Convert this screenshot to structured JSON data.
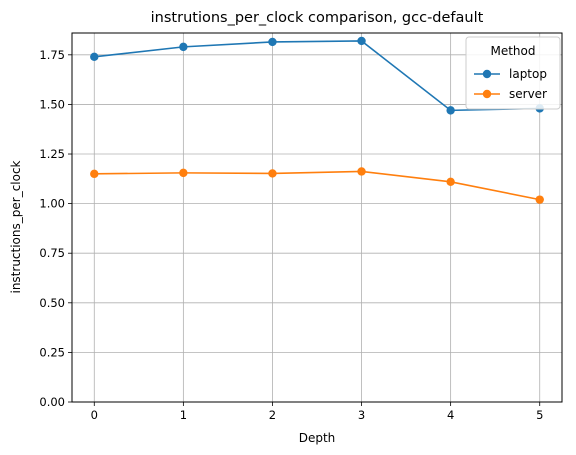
{
  "chart_data": {
    "type": "line",
    "title": "instrutions_per_clock comparison, gcc-default",
    "xlabel": "Depth",
    "ylabel": "instructions_per_clock",
    "x": [
      0,
      1,
      2,
      3,
      4,
      5
    ],
    "xlim": [
      -0.25,
      5.25
    ],
    "ylim": [
      0.0,
      1.86
    ],
    "xticks": [
      "0",
      "1",
      "2",
      "3",
      "4",
      "5"
    ],
    "yticks": [
      0.0,
      0.25,
      0.5,
      0.75,
      1.0,
      1.25,
      1.5,
      1.75
    ],
    "ytick_labels": [
      "0.00",
      "0.25",
      "0.50",
      "0.75",
      "1.00",
      "1.25",
      "1.50",
      "1.75"
    ],
    "grid": true,
    "legend": {
      "title": "Method",
      "placement": "top-right"
    },
    "series": [
      {
        "name": "laptop",
        "color": "#1f77b4",
        "values": [
          1.74,
          1.79,
          1.815,
          1.82,
          1.47,
          1.48
        ]
      },
      {
        "name": "server",
        "color": "#ff7f0e",
        "values": [
          1.15,
          1.155,
          1.152,
          1.162,
          1.11,
          1.02
        ]
      }
    ]
  }
}
